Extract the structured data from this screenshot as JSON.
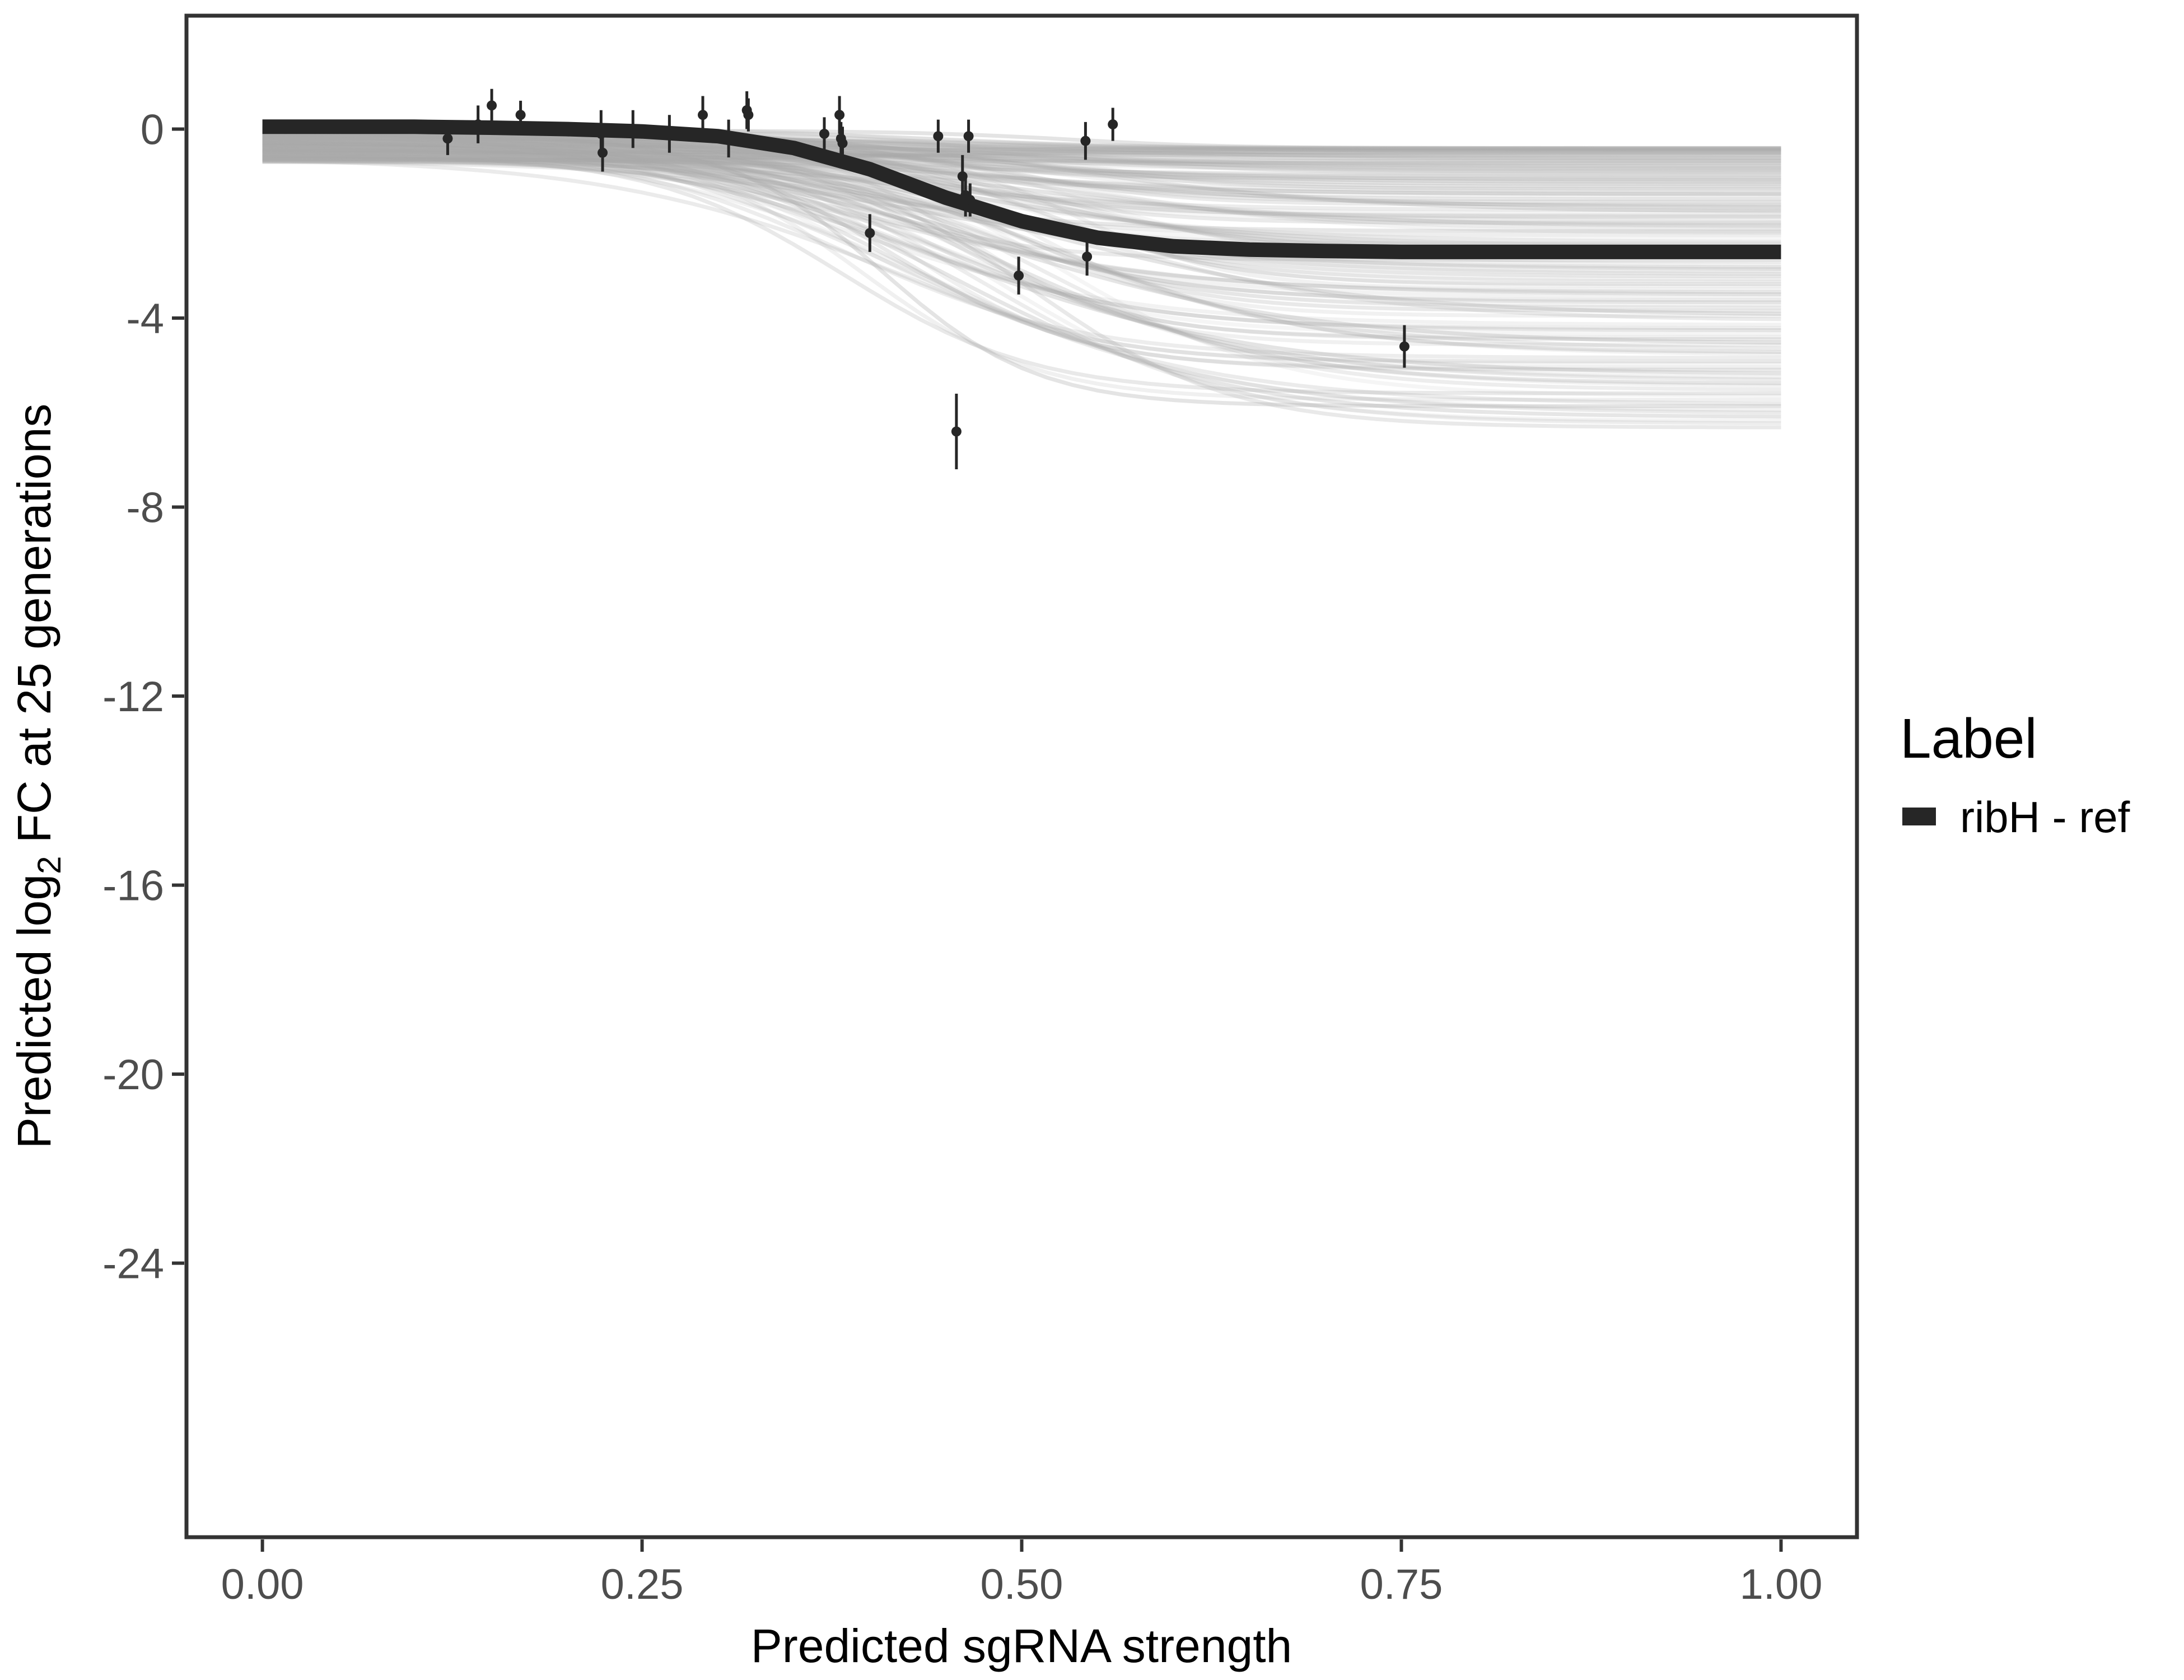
{
  "chart_data": {
    "type": "line",
    "xlabel": "Predicted sgRNA strength",
    "ylabel": {
      "prefix": "Predicted  log",
      "subscript": "2",
      "suffix": " FC at 25 generations"
    },
    "xlim": [
      -0.05,
      1.05
    ],
    "ylim": [
      -29.8,
      2.4
    ],
    "x_ticks": [
      0.0,
      0.25,
      0.5,
      0.75,
      1.0
    ],
    "x_tick_labels": [
      "0.00",
      "0.25",
      "0.50",
      "0.75",
      "1.00"
    ],
    "y_ticks": [
      0,
      -4,
      -8,
      -12,
      -16,
      -20,
      -24
    ],
    "y_tick_labels": [
      "0",
      "-4",
      "-8",
      "-12",
      "-16",
      "-20",
      "-24"
    ],
    "grid": false,
    "legend": {
      "title": "Label",
      "position": "right",
      "entries": [
        {
          "label": "ribH - ref",
          "color": "#262626"
        }
      ]
    },
    "series": [
      {
        "name": "ribH - ref",
        "style": "fitted curve",
        "color": "#262626",
        "x": [
          0.0,
          0.05,
          0.1,
          0.15,
          0.2,
          0.25,
          0.3,
          0.35,
          0.4,
          0.45,
          0.5,
          0.55,
          0.6,
          0.65,
          0.7,
          0.75,
          0.8,
          0.85,
          0.9,
          0.95,
          1.0
        ],
        "y": [
          0.05,
          0.05,
          0.05,
          0.03,
          0.0,
          -0.05,
          -0.15,
          -0.4,
          -0.85,
          -1.45,
          -1.95,
          -2.3,
          -2.48,
          -2.55,
          -2.58,
          -2.6,
          -2.6,
          -2.6,
          -2.6,
          -2.6,
          -2.6
        ]
      }
    ],
    "posterior_draws": {
      "color": "#aaaaaa",
      "y_at_0_range": [
        -0.7,
        0.05
      ],
      "y_at_1_range": [
        -6.4,
        -0.4
      ]
    },
    "observations": {
      "color": "#262626",
      "x": [
        0.122,
        0.142,
        0.151,
        0.17,
        0.223,
        0.224,
        0.244,
        0.268,
        0.29,
        0.307,
        0.319,
        0.32,
        0.37,
        0.38,
        0.381,
        0.382,
        0.4,
        0.445,
        0.457,
        0.461,
        0.463,
        0.465,
        0.466,
        0.498,
        0.542,
        0.543,
        0.56,
        0.752
      ],
      "y": [
        -0.2,
        0.1,
        0.5,
        0.3,
        -0.1,
        -0.5,
        0.0,
        -0.1,
        0.3,
        -0.2,
        0.4,
        0.3,
        -0.1,
        0.3,
        -0.2,
        -0.3,
        -2.2,
        -0.15,
        -6.4,
        -1.0,
        -1.4,
        -0.15,
        -1.5,
        -3.1,
        -0.25,
        -2.7,
        0.1,
        -4.6
      ],
      "err": [
        0.35,
        0.4,
        0.35,
        0.3,
        0.5,
        0.4,
        0.4,
        0.4,
        0.4,
        0.4,
        0.4,
        0.35,
        0.35,
        0.4,
        0.35,
        0.35,
        0.4,
        0.35,
        0.8,
        0.45,
        0.45,
        0.35,
        0.35,
        0.4,
        0.4,
        0.4,
        0.35,
        0.45
      ]
    }
  }
}
